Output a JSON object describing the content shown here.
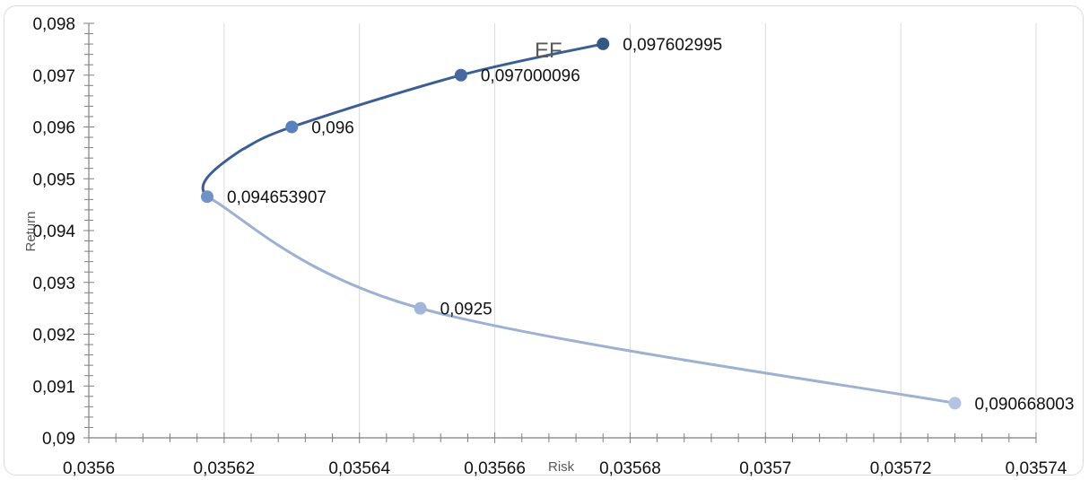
{
  "chart_data": {
    "type": "scatter",
    "title": "EF",
    "xlabel": "Risk",
    "ylabel": "Return",
    "xlim": [
      0.0356,
      0.03574
    ],
    "ylim": [
      0.09,
      0.098
    ],
    "x_ticks": [
      "0,0356",
      "0,03562",
      "0,03564",
      "0,03566",
      "0,03568",
      "0,0357",
      "0,03572",
      "0,03574"
    ],
    "y_ticks": [
      "0,09",
      "0,091",
      "0,092",
      "0,093",
      "0,094",
      "0,095",
      "0,096",
      "0,097",
      "0,098"
    ],
    "grid": "vertical major gridlines",
    "series": [
      {
        "points": [
          {
            "x": 0.035728,
            "y": 0.090668003,
            "label": "0,090668003",
            "color": "#b4c3df"
          },
          {
            "x": 0.035649,
            "y": 0.0925,
            "label": "0,0925",
            "color": "#a3b5d8"
          },
          {
            "x": 0.0356175,
            "y": 0.094653907,
            "label": "0,094653907",
            "color": "#7092c7"
          },
          {
            "x": 0.03563,
            "y": 0.096,
            "label": "0,096",
            "color": "#5b80be"
          },
          {
            "x": 0.035655,
            "y": 0.097000096,
            "label": "0,097000096",
            "color": "#44689f"
          },
          {
            "x": 0.035676,
            "y": 0.097602995,
            "label": "0,097602995",
            "color": "#365782"
          }
        ],
        "curve_color_top": "#3c5f93",
        "curve_color_bottom": "#9fb1d3"
      }
    ]
  }
}
